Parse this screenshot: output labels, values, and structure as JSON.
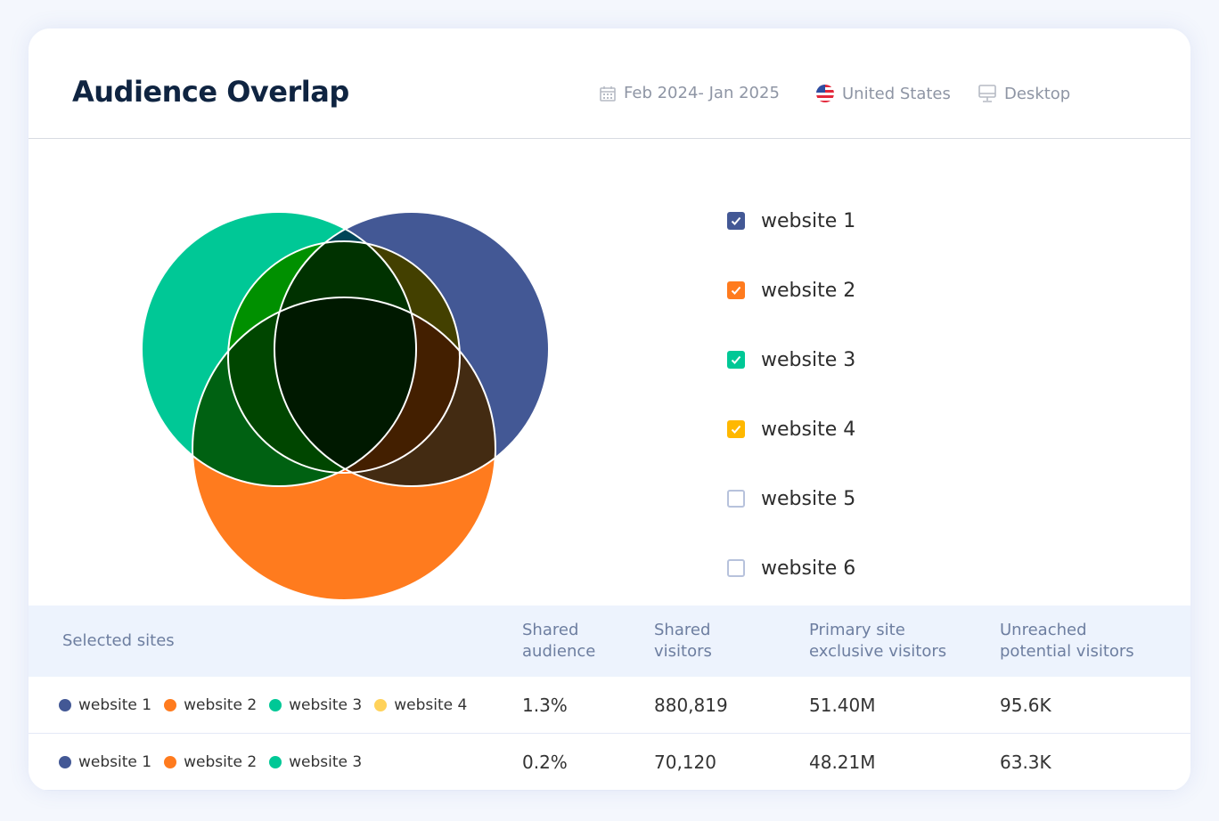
{
  "header": {
    "title": "Audience Overlap",
    "date_range": "Feb 2024- Jan 2025",
    "country": "United States",
    "device": "Desktop"
  },
  "colors": {
    "website 1": "#435895",
    "website 2": "#FF7B1E",
    "website 3": "#00C896",
    "website 4": "#FFB800",
    "website 4 dot": "#FFD25A"
  },
  "legend": [
    {
      "label": "website 1",
      "checked": true,
      "color": "#435895"
    },
    {
      "label": "website 2",
      "checked": true,
      "color": "#FF7B1E"
    },
    {
      "label": "website 3",
      "checked": true,
      "color": "#00C896"
    },
    {
      "label": "website 4",
      "checked": true,
      "color": "#FFB800"
    },
    {
      "label": "website 5",
      "checked": false
    },
    {
      "label": "website 6",
      "checked": false
    }
  ],
  "table": {
    "headers": [
      "Selected sites",
      "Shared\naudience",
      "Shared\nvisitors",
      "Primary site\nexclusive visitors",
      "Unreached\npotential visitors"
    ],
    "rows": [
      {
        "sites": [
          {
            "name": "website 1",
            "color": "#435895"
          },
          {
            "name": "website 2",
            "color": "#FF7B1E"
          },
          {
            "name": "website 3",
            "color": "#00C896"
          },
          {
            "name": "website 4",
            "color": "#FFD25A"
          }
        ],
        "shared_audience": "1.3%",
        "shared_visitors": "880,819",
        "exclusive": "51.40M",
        "unreached": "95.6K"
      },
      {
        "sites": [
          {
            "name": "website 1",
            "color": "#435895"
          },
          {
            "name": "website 2",
            "color": "#FF7B1E"
          },
          {
            "name": "website 3",
            "color": "#00C896"
          }
        ],
        "shared_audience": "0.2%",
        "shared_visitors": "70,120",
        "exclusive": "48.21M",
        "unreached": "63.3K"
      }
    ]
  }
}
